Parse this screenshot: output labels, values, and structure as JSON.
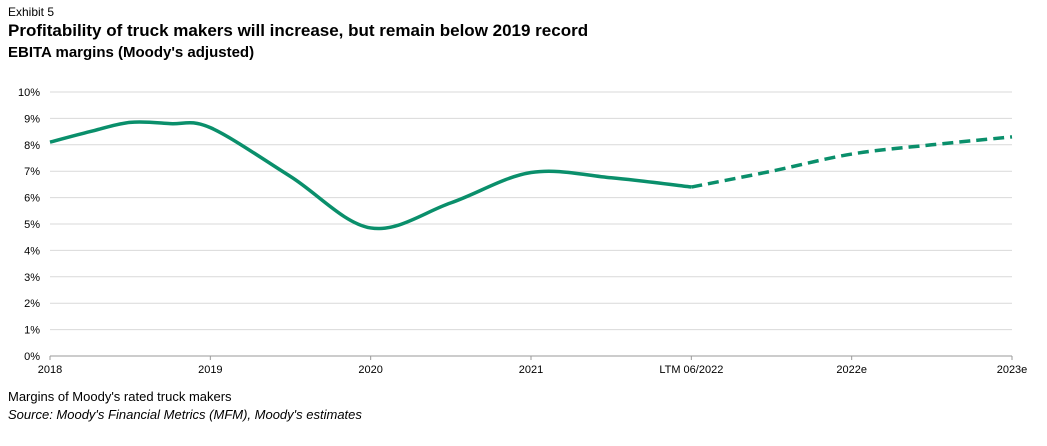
{
  "exhibit": "Exhibit 5",
  "title": "Profitability of truck makers will increase, but remain below 2019 record",
  "subtitle": "EBITA margins (Moody's adjusted)",
  "note": "Margins of Moody's rated truck makers",
  "source": "Source: Moody's Financial Metrics (MFM), Moody's estimates",
  "colors": {
    "line": "#0a8f6b",
    "grid": "#d9d9d9",
    "axis": "#9a9a9a"
  },
  "chart_data": {
    "type": "line",
    "categories": [
      "2018",
      "2019",
      "2020",
      "2021",
      "LTM 06/2022",
      "2022e",
      "2023e"
    ],
    "y_tick_labels": [
      "0%",
      "1%",
      "2%",
      "3%",
      "4%",
      "5%",
      "6%",
      "7%",
      "8%",
      "9%",
      "10%"
    ],
    "ylim": [
      0,
      10
    ],
    "grid": true,
    "series": [
      {
        "style": "solid",
        "x": [
          0,
          0.25,
          0.5,
          0.75,
          1,
          1.5,
          2,
          2.5,
          3,
          3.5,
          4
        ],
        "values": [
          8.1,
          8.5,
          8.85,
          8.8,
          8.65,
          6.8,
          4.85,
          5.8,
          6.95,
          6.75,
          6.4
        ]
      },
      {
        "style": "dashed",
        "x": [
          4,
          4.5,
          5,
          5.5,
          6
        ],
        "values": [
          6.4,
          7.0,
          7.65,
          8.0,
          8.3
        ]
      }
    ]
  }
}
